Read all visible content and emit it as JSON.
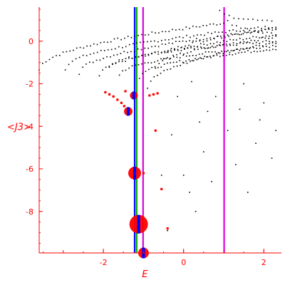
{
  "chart_data": {
    "type": "scatter",
    "title": "",
    "xlabel": "E",
    "ylabel": "<J3>",
    "xlim": [
      -3.6,
      2.35
    ],
    "ylim": [
      -9.95,
      1.6
    ],
    "grid": false,
    "legend": "none",
    "x_ticks": [
      {
        "value": -2,
        "label": "-2"
      },
      {
        "value": 0,
        "label": "0"
      },
      {
        "value": 2,
        "label": "2"
      }
    ],
    "y_ticks": [
      {
        "value": 0,
        "label": "0"
      },
      {
        "value": -2,
        "label": "-2"
      },
      {
        "value": -4,
        "label": "-4"
      },
      {
        "value": -6,
        "label": "-6"
      },
      {
        "value": -8,
        "label": "-8"
      }
    ],
    "colors": {
      "axes": "#ff0000",
      "spectrum_points": "#000000",
      "weighted_points": "#ff0000",
      "weight_circles": "#ff0000",
      "circle_fill": "#ff0000",
      "circle_core": "#0000ff",
      "line_green": "#00aa00",
      "line_blue": "#0000ff",
      "line_magenta": "#dd00dd"
    },
    "vertical_lines": [
      {
        "x": -1.22,
        "color": "#0000ff"
      },
      {
        "x": -1.17,
        "color": "#00aa00"
      },
      {
        "x": -1.01,
        "color": "#dd00dd"
      },
      {
        "x": 1.01,
        "color": "#dd00dd"
      }
    ],
    "black_series": [
      {
        "x_start": -3.6,
        "x_end": 1.0,
        "y_start": -1.35,
        "y_end": 0.85,
        "n": 55
      },
      {
        "x_start": -2.95,
        "x_end": 2.3,
        "y_start": -1.3,
        "y_end": 0.7,
        "n": 60
      },
      {
        "x_start": -2.6,
        "x_end": 2.3,
        "y_start": -1.5,
        "y_end": 0.55,
        "n": 58
      },
      {
        "x_start": -2.1,
        "x_end": 2.3,
        "y_start": -1.65,
        "y_end": 0.3,
        "n": 55
      },
      {
        "x_start": -1.85,
        "x_end": 2.3,
        "y_start": -1.2,
        "y_end": 0.0,
        "n": 52
      },
      {
        "x_start": -1.6,
        "x_end": 2.3,
        "y_start": -1.6,
        "y_end": -0.2,
        "n": 50
      },
      {
        "x_start": -1.1,
        "x_end": 2.3,
        "y_start": -1.7,
        "y_end": -0.35,
        "n": 45
      },
      {
        "x_start": -0.9,
        "x_end": 2.3,
        "y_start": -2.2,
        "y_end": -0.05,
        "n": 40
      },
      {
        "x_start": -0.7,
        "x_end": 2.3,
        "y_start": -1.3,
        "y_end": 0.2,
        "n": 35
      },
      {
        "x_start": -0.5,
        "x_end": 2.3,
        "y_start": -0.8,
        "y_end": 0.6,
        "n": 32
      },
      {
        "x_start": 0.9,
        "x_end": 2.2,
        "y_start": 1.4,
        "y_end": 0.9,
        "n": 12
      },
      {
        "x_start": 1.1,
        "x_end": 2.3,
        "y_start": 1.0,
        "y_end": 0.3,
        "n": 12
      }
    ],
    "black_scattered": [
      [
        -0.3,
        -4.4
      ],
      [
        -0.55,
        -6.3
      ],
      [
        -0.4,
        -8.9
      ],
      [
        0.0,
        -6.3
      ],
      [
        0.15,
        -7.1
      ],
      [
        0.4,
        -3.8
      ],
      [
        0.5,
        -5.2
      ],
      [
        0.7,
        -6.6
      ],
      [
        0.3,
        -8.0
      ],
      [
        0.8,
        -2.6
      ],
      [
        1.1,
        -4.2
      ],
      [
        1.3,
        -5.8
      ],
      [
        1.4,
        -3.2
      ],
      [
        1.6,
        -7.1
      ],
      [
        1.8,
        -4.8
      ],
      [
        2.0,
        -2.9
      ],
      [
        2.2,
        -5.5
      ],
      [
        2.3,
        -4.2
      ],
      [
        0.6,
        -3.3
      ],
      [
        1.9,
        -3.7
      ],
      [
        0.2,
        -1.9
      ],
      [
        -0.15,
        -2.6
      ],
      [
        1.5,
        -2.0
      ]
    ],
    "red_points": [
      [
        -1.95,
        -2.4
      ],
      [
        -1.85,
        -2.5
      ],
      [
        -1.75,
        -2.6
      ],
      [
        -1.65,
        -2.75
      ],
      [
        -1.55,
        -2.9
      ],
      [
        -1.48,
        -3.05
      ],
      [
        -1.42,
        -3.2
      ],
      [
        -1.38,
        -3.3
      ],
      [
        -1.36,
        -3.38
      ],
      [
        -1.28,
        -2.6
      ],
      [
        -0.85,
        -2.55
      ],
      [
        -0.75,
        -2.5
      ],
      [
        -0.65,
        -2.45
      ],
      [
        -1.0,
        -6.2
      ],
      [
        -0.7,
        -4.2
      ],
      [
        -0.55,
        -6.95
      ],
      [
        -0.4,
        -8.8
      ],
      [
        -1.45,
        -2.35
      ]
    ],
    "weighted_states": [
      {
        "x": -1.24,
        "y": -2.55,
        "weight": 0.25
      },
      {
        "x": -1.38,
        "y": -3.3,
        "weight": 0.3
      },
      {
        "x": -1.22,
        "y": -6.2,
        "weight": 0.6
      },
      {
        "x": -1.12,
        "y": -8.6,
        "weight": 1.0
      },
      {
        "x": -1.0,
        "y": -9.95,
        "weight": 0.45
      }
    ]
  }
}
